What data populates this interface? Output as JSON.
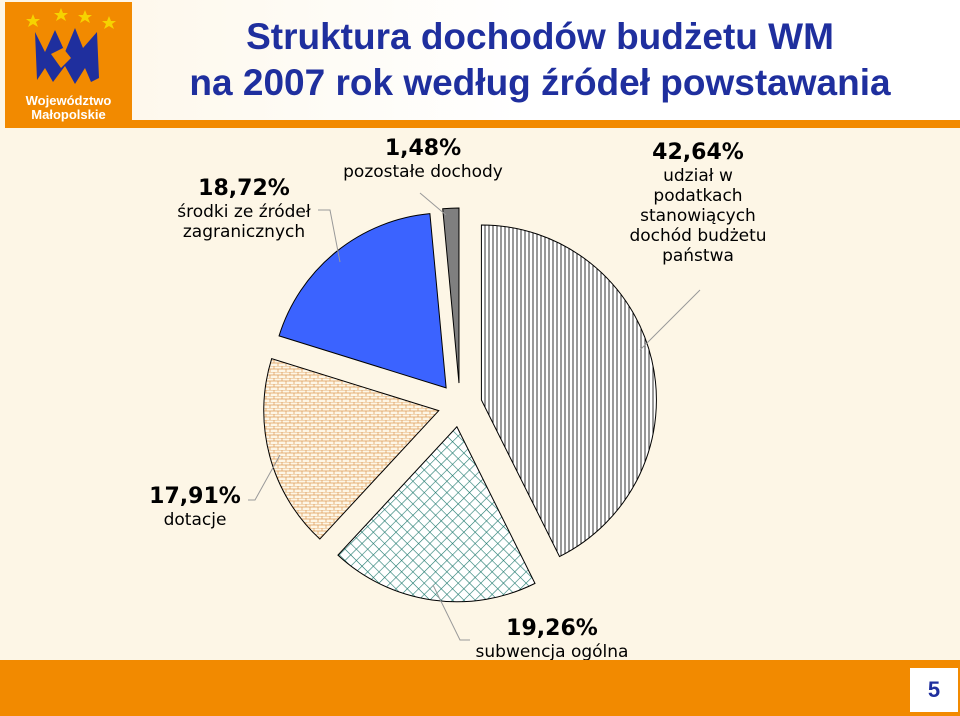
{
  "header": {
    "logo_line1": "Województwo",
    "logo_line2": "Małopolskie",
    "title_line1": "Struktura dochodów budżetu WM",
    "title_line2": "na 2007 rok według źródeł powstawania"
  },
  "footer": {
    "page_number": "5"
  },
  "colors": {
    "orange": "#f28a00",
    "title_blue": "#1f2f9e",
    "slice_blue": "#3b63ff",
    "slice_gray": "#7f7f7f",
    "background": "#fdf6e6"
  },
  "chart_data": {
    "type": "pie",
    "title": "",
    "start_angle_deg": 0,
    "slices": [
      {
        "category": "udział w podatkach stanowiących dochód budżetu państwa",
        "value": 42.64,
        "label": "42,64%",
        "fill": "vertical-stripes"
      },
      {
        "category": "subwencja ogólna",
        "value": 19.26,
        "label": "19,26%",
        "fill": "diagonal-grid-teal"
      },
      {
        "category": "dotacje",
        "value": 17.91,
        "label": "17,91%",
        "fill": "brick-pattern"
      },
      {
        "category": "środki ze źródeł zagranicznych",
        "value": 18.72,
        "label": "18,72%",
        "fill": "solid-blue"
      },
      {
        "category": "pozostałe dochody",
        "value": 1.48,
        "label": "1,48%",
        "fill": "solid-gray"
      }
    ]
  },
  "labels": {
    "podatki": {
      "pct": "42,64%",
      "lines": [
        "udział w",
        "podatkach",
        "stanowiących",
        "dochód budżetu",
        "państwa"
      ]
    },
    "subwencja": {
      "pct": "19,26%",
      "lines": [
        "subwencja ogólna"
      ]
    },
    "dotacje": {
      "pct": "17,91%",
      "lines": [
        "dotacje"
      ]
    },
    "zagraniczne": {
      "pct": "18,72%",
      "lines": [
        "środki ze źródeł",
        "zagranicznych"
      ]
    },
    "pozostale": {
      "pct": "1,48%",
      "lines": [
        "pozostałe dochody"
      ]
    }
  }
}
